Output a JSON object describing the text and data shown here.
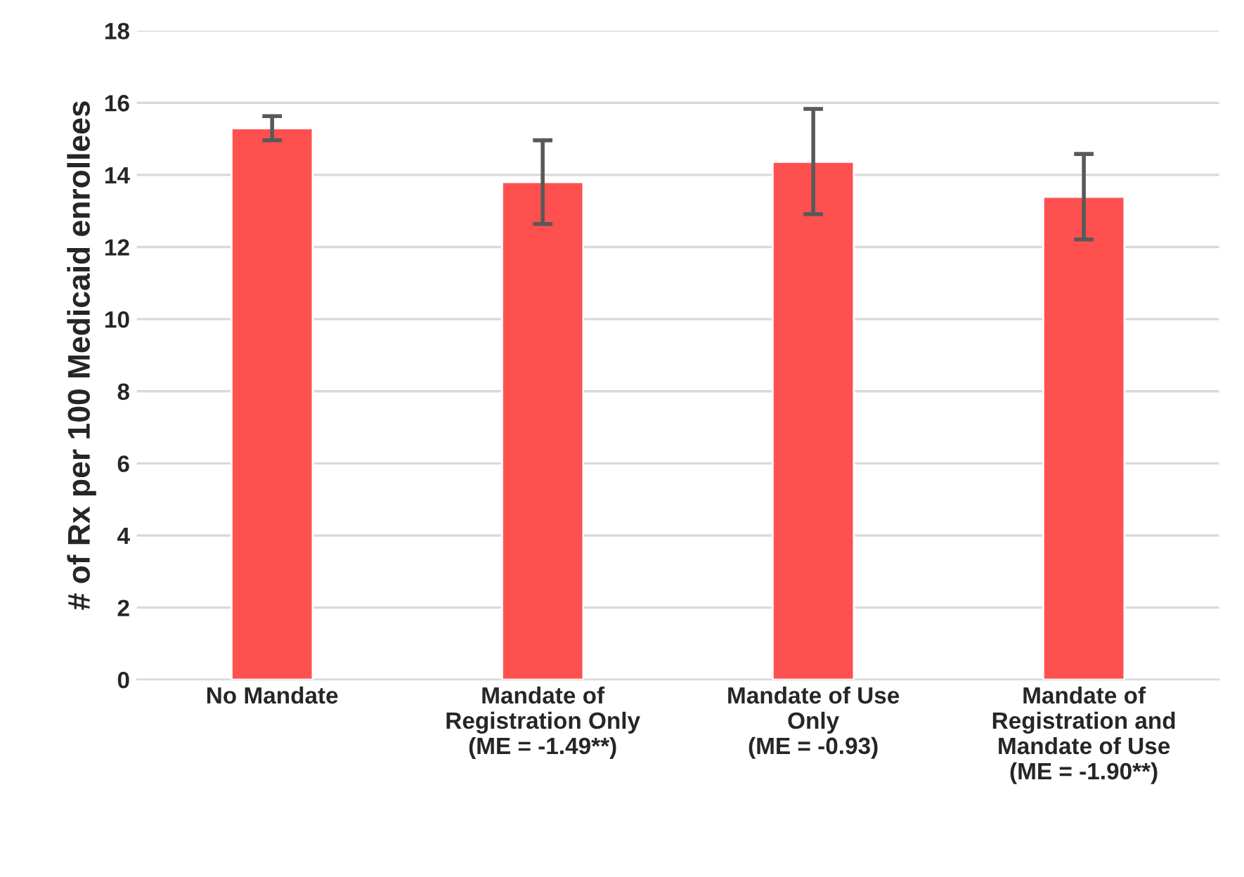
{
  "chart_data": {
    "type": "bar",
    "ylabel": "# of Rx per 100 Medicaid enrollees",
    "categories": [
      "No Mandate",
      "Mandate of\nRegistration Only\n(ME = -1.49**)",
      "Mandate of Use\nOnly\n(ME = -0.93)",
      "Mandate of\nRegistration and\nMandate of Use\n(ME = -1.90**)"
    ],
    "values": [
      15.29,
      13.8,
      14.36,
      13.39
    ],
    "errors": [
      [
        14.96,
        15.63
      ],
      [
        12.64,
        14.96
      ],
      [
        12.91,
        15.83
      ],
      [
        12.21,
        14.58
      ]
    ],
    "color": "#ff5050",
    "ylim": [
      0,
      18
    ],
    "yticks": [
      0,
      2,
      4,
      6,
      8,
      10,
      12,
      14,
      16,
      18
    ],
    "grid": "y"
  }
}
